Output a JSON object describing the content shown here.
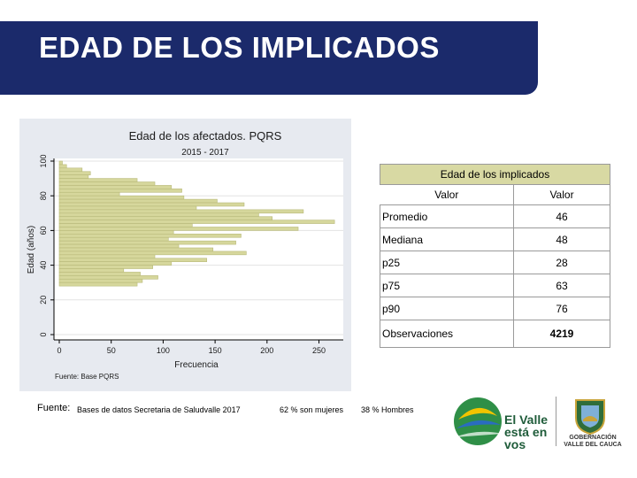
{
  "slide_title": "EDAD DE LOS IMPLICADOS",
  "chart_data": {
    "type": "bar",
    "orientation": "horizontal",
    "title": "Edad de los afectados. PQRS",
    "subtitle": "2015 - 2017",
    "xlabel": "Frecuencia",
    "ylabel": "Edad (años)",
    "source_note": "Fuente: Base PQRS",
    "xlim": [
      0,
      270
    ],
    "ylim": [
      0,
      100
    ],
    "xticks": [
      0,
      50,
      100,
      150,
      200,
      250
    ],
    "yticks": [
      0,
      20,
      40,
      60,
      80,
      100
    ],
    "bin_width": 2,
    "bins": [
      {
        "age": 98,
        "freq": 3
      },
      {
        "age": 96,
        "freq": 7
      },
      {
        "age": 94,
        "freq": 22
      },
      {
        "age": 92,
        "freq": 30
      },
      {
        "age": 90,
        "freq": 28
      },
      {
        "age": 88,
        "freq": 75
      },
      {
        "age": 86,
        "freq": 92
      },
      {
        "age": 84,
        "freq": 108
      },
      {
        "age": 82,
        "freq": 118
      },
      {
        "age": 80,
        "freq": 58
      },
      {
        "age": 78,
        "freq": 120
      },
      {
        "age": 76,
        "freq": 152
      },
      {
        "age": 74,
        "freq": 178
      },
      {
        "age": 72,
        "freq": 132
      },
      {
        "age": 70,
        "freq": 235
      },
      {
        "age": 68,
        "freq": 192
      },
      {
        "age": 66,
        "freq": 205
      },
      {
        "age": 64,
        "freq": 265
      },
      {
        "age": 62,
        "freq": 128
      },
      {
        "age": 60,
        "freq": 230
      },
      {
        "age": 58,
        "freq": 110
      },
      {
        "age": 56,
        "freq": 175
      },
      {
        "age": 54,
        "freq": 105
      },
      {
        "age": 52,
        "freq": 170
      },
      {
        "age": 50,
        "freq": 115
      },
      {
        "age": 48,
        "freq": 148
      },
      {
        "age": 46,
        "freq": 180
      },
      {
        "age": 44,
        "freq": 92
      },
      {
        "age": 42,
        "freq": 142
      },
      {
        "age": 40,
        "freq": 108
      },
      {
        "age": 38,
        "freq": 90
      },
      {
        "age": 36,
        "freq": 62
      },
      {
        "age": 34,
        "freq": 78
      },
      {
        "age": 32,
        "freq": 95
      },
      {
        "age": 30,
        "freq": 80
      },
      {
        "age": 28,
        "freq": 75
      }
    ]
  },
  "stats_table": {
    "caption": "Edad de los implicados",
    "col_headers": [
      "Valor",
      "Valor"
    ],
    "rows": [
      {
        "label": "Promedio",
        "value": "46"
      },
      {
        "label": "Mediana",
        "value": "48"
      },
      {
        "label": "p25",
        "value": "28"
      },
      {
        "label": "p75",
        "value": "63"
      },
      {
        "label": "p90",
        "value": "76"
      },
      {
        "label": "Observaciones",
        "value": "4219"
      }
    ]
  },
  "footer": {
    "label": "Fuente:",
    "source": "Bases de datos Secretaria de Saludvalle 2017",
    "women": "62 % son mujeres",
    "men": "38 % Hombres"
  },
  "branding": {
    "slogan_line1": "El Valle",
    "slogan_line2": "está en",
    "slogan_line3": "vos",
    "gov_line1": "GOBERNACIÓN",
    "gov_line2": "VALLE DEL CAUCA"
  },
  "colors": {
    "header": "#1b2a6b",
    "bar_fill": "#d6d79c",
    "bar_stroke": "#b8b97a",
    "table_caption": "#d8d9a3",
    "logo_green": "#2f8f47",
    "logo_yellow": "#f2c400",
    "logo_blue": "#2a6cc0"
  }
}
